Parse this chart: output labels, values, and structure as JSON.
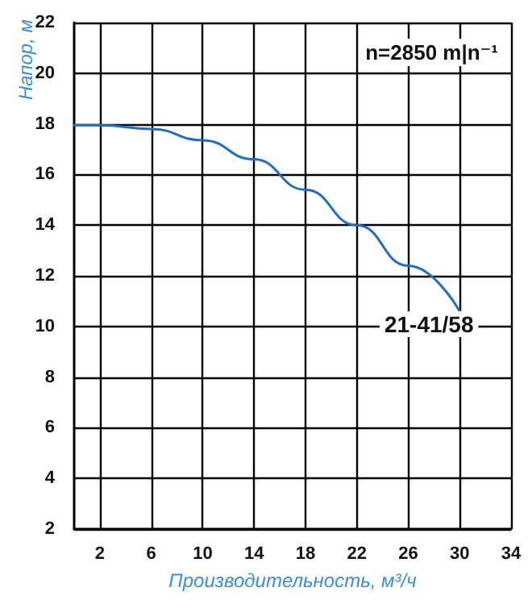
{
  "chart_data": {
    "type": "line",
    "xlabel": "Производительность, м³/ч",
    "ylabel": "Напор, м",
    "x": [
      0,
      2,
      6,
      10,
      14,
      18,
      22,
      26,
      30
    ],
    "series": [
      {
        "color": "#1f6fbf",
        "values": [
          17.95,
          17.95,
          17.8,
          17.35,
          16.6,
          15.4,
          14.0,
          12.4,
          10.6
        ]
      }
    ],
    "xlim": [
      0,
      34
    ],
    "xticks": [
      2,
      6,
      10,
      14,
      18,
      22,
      26,
      30,
      34
    ],
    "ylim": [
      2,
      22
    ],
    "yticks": [
      2,
      4,
      6,
      8,
      10,
      12,
      14,
      16,
      18,
      20,
      22
    ],
    "grid": true,
    "marker": "none",
    "line_style": "solid",
    "annotations": [
      "n=2850 m|n⁻¹",
      {
        "text": "21-41/58",
        "x": 30,
        "y": 10.6
      }
    ]
  }
}
